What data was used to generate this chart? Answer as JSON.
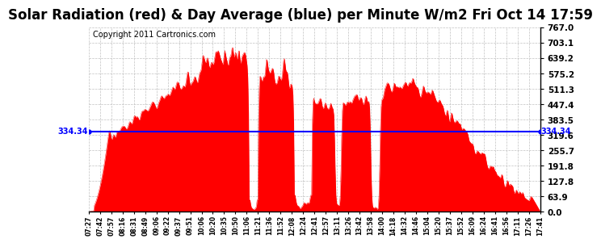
{
  "title": "Solar Radiation (red) & Day Average (blue) per Minute W/m2 Fri Oct 14 17:59",
  "copyright_text": "Copyright 2011 Cartronics.com",
  "day_average": 334.34,
  "y_max": 767.0,
  "y_min": 0.0,
  "y_ticks": [
    0.0,
    63.9,
    127.8,
    191.8,
    255.7,
    319.6,
    383.5,
    447.4,
    511.3,
    575.2,
    639.2,
    703.1,
    767.0
  ],
  "y_tick_labels": [
    "0.0",
    "63.9",
    "127.8",
    "191.8",
    "255.7",
    "319.6",
    "383.5",
    "447.4",
    "511.3",
    "575.2",
    "639.2",
    "703.1",
    "767.0"
  ],
  "x_tick_labels": [
    "07:27",
    "07:42",
    "07:57",
    "08:16",
    "08:31",
    "08:49",
    "09:06",
    "09:22",
    "09:37",
    "09:51",
    "10:06",
    "10:20",
    "10:35",
    "10:50",
    "11:06",
    "11:21",
    "11:36",
    "11:52",
    "12:08",
    "12:24",
    "12:41",
    "12:57",
    "13:11",
    "13:26",
    "13:42",
    "13:58",
    "14:00",
    "14:18",
    "14:32",
    "14:46",
    "15:04",
    "15:20",
    "15:37",
    "15:52",
    "16:09",
    "16:24",
    "16:41",
    "16:56",
    "17:11",
    "17:26",
    "17:41"
  ],
  "fill_color": "#FF0000",
  "avg_line_color": "#0000FF",
  "background_color": "#FFFFFF",
  "grid_color": "#BBBBBB",
  "title_fontsize": 12,
  "label_fontsize": 7.5,
  "copyright_fontsize": 7,
  "avg_label": "334.34"
}
